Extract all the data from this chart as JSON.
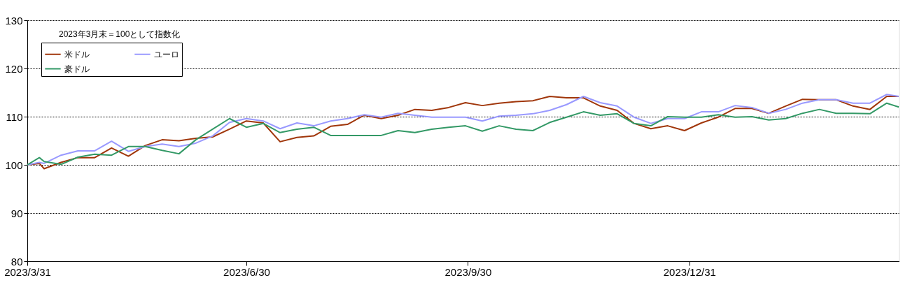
{
  "chart_data": {
    "type": "line",
    "x": [
      "2023-03-31",
      "2023-04-05",
      "2023-04-07",
      "2023-04-14",
      "2023-04-21",
      "2023-04-28",
      "2023-05-05",
      "2023-05-12",
      "2023-05-19",
      "2023-05-26",
      "2023-06-02",
      "2023-06-09",
      "2023-06-16",
      "2023-06-23",
      "2023-06-30",
      "2023-07-07",
      "2023-07-14",
      "2023-07-21",
      "2023-07-28",
      "2023-08-04",
      "2023-08-11",
      "2023-08-18",
      "2023-08-25",
      "2023-09-01",
      "2023-09-08",
      "2023-09-15",
      "2023-09-22",
      "2023-09-29",
      "2023-10-06",
      "2023-10-13",
      "2023-10-20",
      "2023-10-27",
      "2023-11-03",
      "2023-11-10",
      "2023-11-17",
      "2023-11-24",
      "2023-12-01",
      "2023-12-08",
      "2023-12-15",
      "2023-12-22",
      "2023-12-29",
      "2024-01-05",
      "2024-01-12",
      "2024-01-19",
      "2024-01-26",
      "2024-02-02",
      "2024-02-09",
      "2024-02-16",
      "2024-02-23",
      "2024-03-01",
      "2024-03-08",
      "2024-03-15",
      "2024-03-22",
      "2024-03-27"
    ],
    "series": [
      {
        "name": "米ドル",
        "color": "#a0360a",
        "values": [
          100,
          100.3,
          99.2,
          100.5,
          101.5,
          101.5,
          103.5,
          101.8,
          104,
          105.2,
          105,
          105.5,
          105.8,
          107.4,
          109.1,
          108.7,
          104.8,
          105.7,
          106,
          108,
          108.4,
          110.3,
          109.6,
          110.3,
          111.5,
          111.3,
          111.9,
          112.9,
          112.3,
          112.8,
          113.1,
          113.3,
          114.2,
          113.9,
          113.9,
          112.2,
          111.3,
          108.6,
          107.5,
          108.1,
          107.1,
          108.7,
          109.9,
          111.7,
          111.7,
          110.7,
          112.2,
          113.6,
          113.5,
          113.5,
          112.2,
          111.5,
          114.2,
          114.2
        ]
      },
      {
        "name": "ユーロ",
        "color": "#9999ff",
        "values": [
          100,
          100.5,
          100.3,
          102,
          102.9,
          102.9,
          104.9,
          102.8,
          103.8,
          104.3,
          103.8,
          104.5,
          106,
          108.8,
          109.6,
          109.1,
          107.5,
          108.7,
          108.1,
          109.1,
          109.6,
          110.4,
          109.9,
          110.7,
          110.3,
          109.9,
          109.9,
          109.9,
          109.1,
          110.1,
          110.3,
          110.6,
          111.3,
          112.5,
          114.2,
          112.9,
          112.2,
          109.9,
          108.6,
          109.6,
          109.6,
          111,
          111,
          112.3,
          111.9,
          110.7,
          111.5,
          112.8,
          113.5,
          113.5,
          112.8,
          112.8,
          114.6,
          114.2
        ]
      },
      {
        "name": "豪ドル",
        "color": "#339966",
        "values": [
          100,
          101.5,
          100.7,
          100.1,
          101.6,
          102.2,
          102,
          103.8,
          103.8,
          103,
          102.3,
          105.2,
          107.4,
          109.6,
          107.8,
          108.6,
          106.7,
          107.4,
          107.8,
          106.1,
          106.1,
          106.1,
          106.1,
          107.1,
          106.7,
          107.4,
          107.8,
          108.1,
          107,
          108.1,
          107.4,
          107.1,
          108.8,
          109.9,
          111,
          110.3,
          110.6,
          108.6,
          108.1,
          110,
          109.9,
          109.9,
          110.4,
          109.9,
          110,
          109.3,
          109.6,
          110.7,
          111.5,
          110.7,
          110.7,
          110.6,
          112.8,
          112
        ]
      }
    ],
    "xlim": [
      "2023-03-31",
      "2024-03-27"
    ],
    "xticks": [
      {
        "value": "2023-03-31",
        "label": "2023/3/31"
      },
      {
        "value": "2023-06-30",
        "label": "2023/6/30"
      },
      {
        "value": "2023-09-30",
        "label": "2023/9/30"
      },
      {
        "value": "2023-12-31",
        "label": "2023/12/31"
      }
    ],
    "ylim": [
      80,
      130
    ],
    "yticks": [
      80,
      90,
      100,
      110,
      120,
      130
    ],
    "grid": "y",
    "legend": "top left",
    "marker": "none",
    "line_style": "solid",
    "annotations": [
      "2023年3月末＝100として指数化"
    ]
  }
}
